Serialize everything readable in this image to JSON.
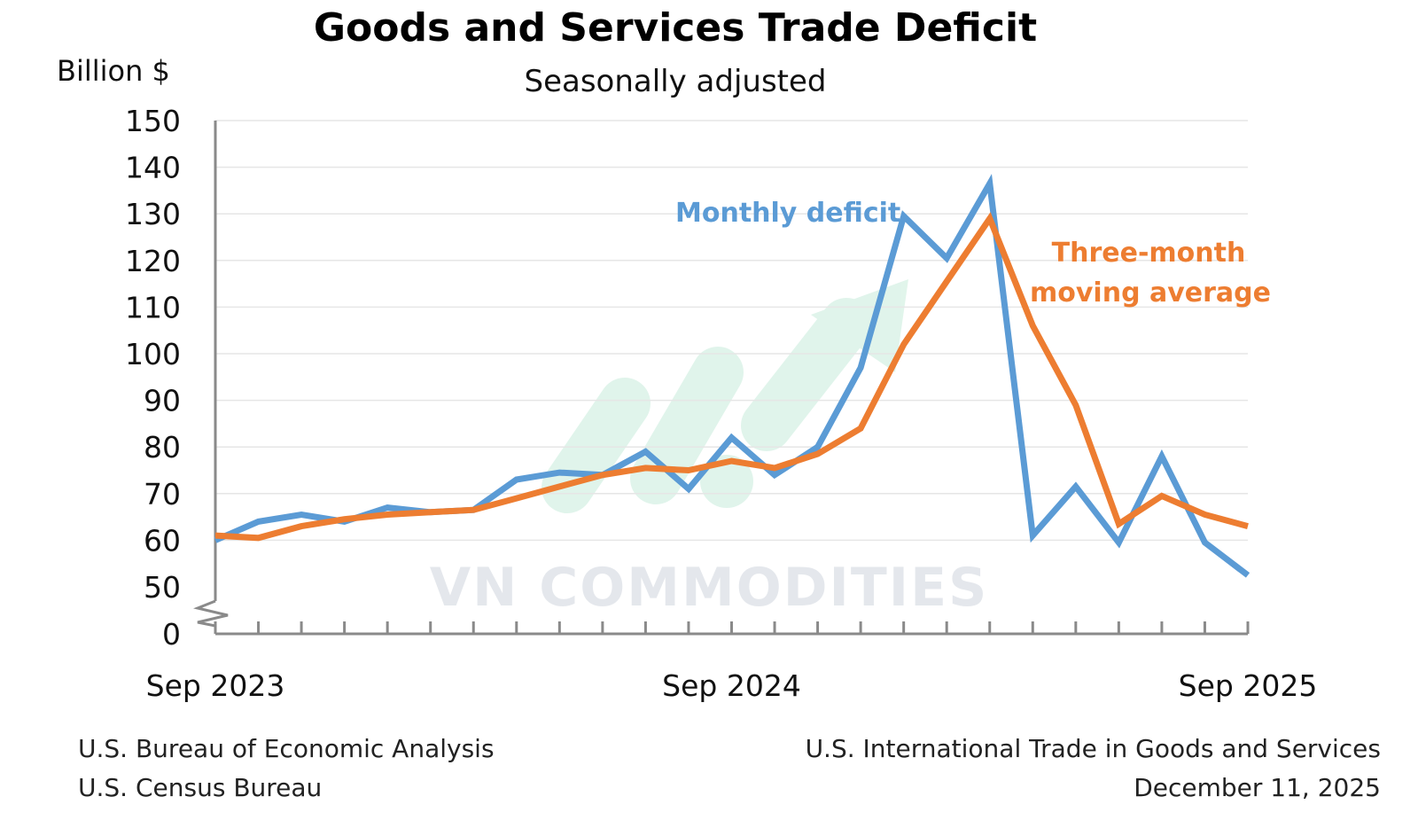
{
  "chart_data": {
    "type": "line",
    "title": "Goods and Services Trade Deficit",
    "subtitle": "Seasonally adjusted",
    "ylabel": "Billion $",
    "ylim": [
      0,
      150
    ],
    "yticks": [
      0,
      50,
      60,
      70,
      80,
      90,
      100,
      110,
      120,
      130,
      140,
      150
    ],
    "y_axis_break": "between 0 and 50",
    "x": [
      "Sep 2023",
      "Oct 2023",
      "Nov 2023",
      "Dec 2023",
      "Jan 2024",
      "Feb 2024",
      "Mar 2024",
      "Apr 2024",
      "May 2024",
      "Jun 2024",
      "Jul 2024",
      "Aug 2024",
      "Sep 2024",
      "Oct 2024",
      "Nov 2024",
      "Dec 2024",
      "Jan 2025",
      "Feb 2025",
      "Mar 2025",
      "Apr 2025",
      "May 2025",
      "Jun 2025",
      "Jul 2025",
      "Aug 2025",
      "Sep 2025"
    ],
    "xtick_labels": [
      "Sep 2023",
      "Sep 2024",
      "Sep 2025"
    ],
    "grid": "horizontal",
    "series": [
      {
        "name": "Monthly deficit",
        "color": "#5b9bd5",
        "values": [
          60,
          64,
          65.5,
          64,
          67,
          66,
          66.5,
          73,
          74.5,
          74,
          79,
          71,
          82,
          74,
          80,
          97,
          129.5,
          120.5,
          136.5,
          61,
          71.5,
          59.5,
          78,
          59.5,
          52.5
        ]
      },
      {
        "name": "Three-month moving average",
        "label_lines": [
          "Three-month",
          "moving average"
        ],
        "color": "#ed7d31",
        "values": [
          61,
          60.5,
          63,
          64.5,
          65.5,
          66,
          66.5,
          69,
          71.5,
          74,
          75.5,
          75,
          77,
          75.5,
          78.5,
          84,
          102,
          115.5,
          129,
          106,
          89,
          63.5,
          69.5,
          65.5,
          63
        ]
      }
    ]
  },
  "source": {
    "left_line1": "U.S. Bureau of Economic Analysis",
    "left_line2": "U.S. Census Bureau",
    "right_line1": "U.S. International Trade in Goods and Services",
    "right_line2": "December 11, 2025"
  },
  "watermark": {
    "text": "VN COMMODITIES",
    "logo_icon": "rising-arrow-logo"
  }
}
